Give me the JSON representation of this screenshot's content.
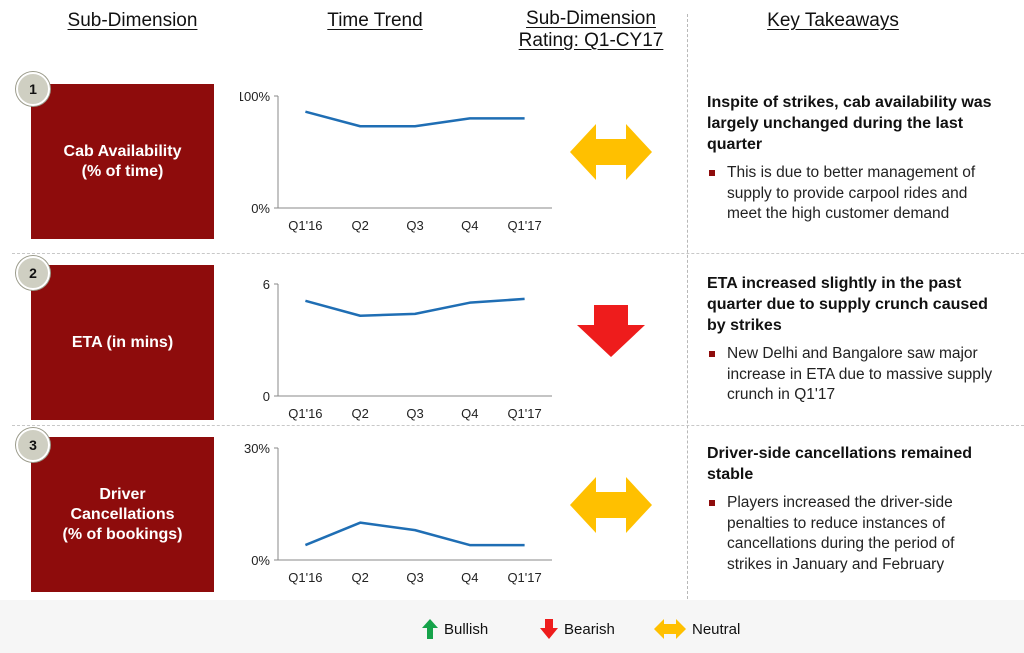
{
  "headers": {
    "sub_dimension": "Sub-Dimension",
    "time_trend": "Time Trend",
    "rating": "Sub-Dimension\nRating: Q1-CY17",
    "takeaways": "Key Takeaways"
  },
  "rows": [
    {
      "number": "1",
      "label": "Cab Availability\n(% of time)",
      "rating": "neutral",
      "takeaway_heading": "Inspite of strikes, cab availability was largely unchanged during the last quarter",
      "takeaway_bullet": "This is due to better management of supply to provide carpool rides and meet the high customer demand"
    },
    {
      "number": "2",
      "label": "ETA (in mins)",
      "rating": "bearish",
      "takeaway_heading": "ETA increased slightly in the past quarter due to supply crunch caused by strikes",
      "takeaway_bullet": "New Delhi and Bangalore saw major increase in ETA due to massive supply crunch in Q1'17"
    },
    {
      "number": "3",
      "label": "Driver\nCancellations\n(% of bookings)",
      "rating": "neutral",
      "takeaway_heading": "Driver-side cancellations remained stable",
      "takeaway_bullet": "Players increased the driver-side penalties to reduce instances of cancellations during the period of strikes in January and February"
    }
  ],
  "chart_data": [
    {
      "type": "line",
      "categories": [
        "Q1'16",
        "Q2",
        "Q3",
        "Q4",
        "Q1'17"
      ],
      "values": [
        86,
        73,
        73,
        80,
        80
      ],
      "ylim": [
        0,
        100
      ],
      "ytick_labels": [
        "100%",
        "0%"
      ],
      "line_color": "#1f6eb4"
    },
    {
      "type": "line",
      "categories": [
        "Q1'16",
        "Q2",
        "Q3",
        "Q4",
        "Q1'17"
      ],
      "values": [
        5.1,
        4.3,
        4.4,
        5.0,
        5.2
      ],
      "ylim": [
        0,
        6
      ],
      "ytick_labels": [
        "6",
        "0"
      ],
      "line_color": "#1f6eb4"
    },
    {
      "type": "line",
      "categories": [
        "Q1'16",
        "Q2",
        "Q3",
        "Q4",
        "Q1'17"
      ],
      "values": [
        4,
        10,
        8,
        4,
        4
      ],
      "ylim": [
        0,
        30
      ],
      "ytick_labels": [
        "30%",
        "0%"
      ],
      "line_color": "#1f6eb4"
    }
  ],
  "legend": {
    "bullish": "Bullish",
    "bearish": "Bearish",
    "neutral": "Neutral"
  },
  "colors": {
    "box": "#8e0c0c",
    "bullish": "#16a34a",
    "bearish": "#ee1c1c",
    "neutral": "#ffc000",
    "line": "#1f6eb4"
  }
}
